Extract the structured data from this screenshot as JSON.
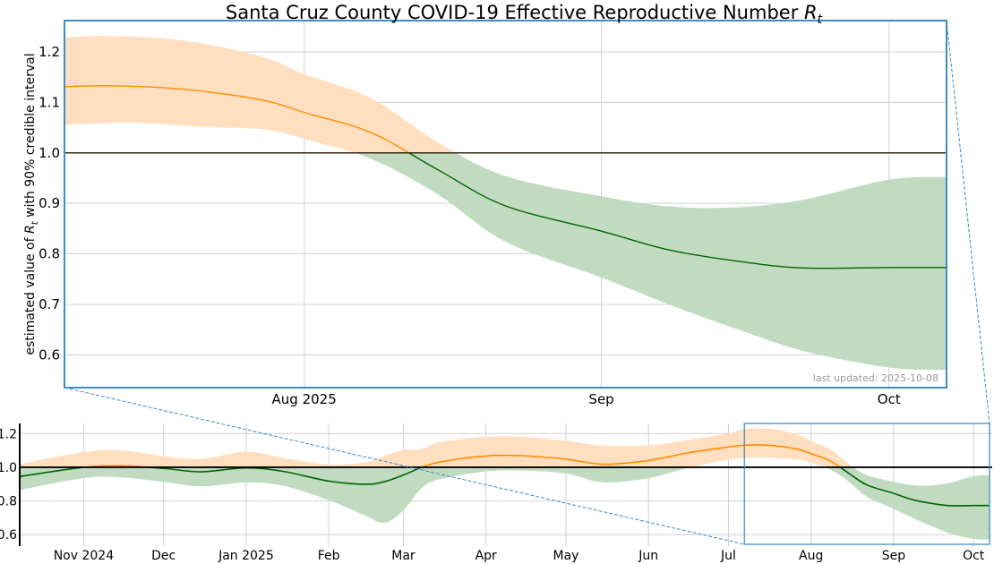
{
  "chart_data": [
    {
      "type": "line",
      "panel": "main",
      "title": {
        "text": "Santa Cruz County COVID-19 Effective Reproductive Number",
        "symbol": "R",
        "subscript": "t"
      },
      "ylabel": {
        "pre": "estimated value of",
        "symbol": "R",
        "subscript": "t",
        "post": "with 90% credible interval"
      },
      "xlim": [
        "2025-07-07",
        "2025-10-07"
      ],
      "ylim": [
        0.535,
        1.262
      ],
      "xticks": [
        {
          "date": "2025-08-01",
          "label": "Aug 2025"
        },
        {
          "date": "2025-09-01",
          "label": "Sep"
        },
        {
          "date": "2025-10-01",
          "label": "Oct"
        }
      ],
      "yticks": [
        {
          "value": 0.6,
          "label": "0.6"
        },
        {
          "value": 0.7,
          "label": "0.7"
        },
        {
          "value": 0.8,
          "label": "0.8"
        },
        {
          "value": 0.9,
          "label": "0.9"
        },
        {
          "value": 1.0,
          "label": "1.0"
        },
        {
          "value": 1.1,
          "label": "1.1"
        },
        {
          "value": 1.2,
          "label": "1.2"
        }
      ],
      "grid": true,
      "reference_line": 1.0,
      "annotation": "last updated: 2025-10-08"
    },
    {
      "type": "line",
      "panel": "overview",
      "xlim": [
        "2024-10-08",
        "2025-10-08"
      ],
      "ylim": [
        0.532,
        1.26
      ],
      "xticks": [
        {
          "date": "2024-11-01",
          "label": "Nov 2024"
        },
        {
          "date": "2024-12-01",
          "label": "Dec"
        },
        {
          "date": "2025-01-01",
          "label": "Jan 2025"
        },
        {
          "date": "2025-02-01",
          "label": "Feb"
        },
        {
          "date": "2025-03-01",
          "label": "Mar"
        },
        {
          "date": "2025-04-01",
          "label": "Apr"
        },
        {
          "date": "2025-05-01",
          "label": "May"
        },
        {
          "date": "2025-06-01",
          "label": "Jun"
        },
        {
          "date": "2025-07-01",
          "label": "Jul"
        },
        {
          "date": "2025-08-01",
          "label": "Aug"
        },
        {
          "date": "2025-09-01",
          "label": "Sep"
        },
        {
          "date": "2025-10-01",
          "label": "Oct"
        }
      ],
      "yticks": [
        {
          "value": 0.6,
          "label": "0.6"
        },
        {
          "value": 0.8,
          "label": "0.8"
        },
        {
          "value": 1.0,
          "label": "1.0"
        },
        {
          "value": 1.2,
          "label": "1.2"
        }
      ],
      "grid": true,
      "reference_line": 1.0,
      "zoom_range": [
        "2025-07-07",
        "2025-10-07"
      ]
    }
  ],
  "series": {
    "colors": {
      "above_line": "#ff8c00",
      "above_fill": "#ffdfbf",
      "below_line": "#006400",
      "below_fill": "#c1dbc1",
      "reference": "#000000",
      "frame": "#3d8cc4"
    },
    "points": [
      {
        "date": "2024-10-08",
        "median": 0.945,
        "lower": 0.865,
        "upper": 1.018
      },
      {
        "date": "2024-11-01",
        "median": 1.0,
        "lower": 0.936,
        "upper": 1.09
      },
      {
        "date": "2024-11-15",
        "median": 1.009,
        "lower": 0.94,
        "upper": 1.1
      },
      {
        "date": "2024-12-01",
        "median": 0.993,
        "lower": 0.913,
        "upper": 1.066
      },
      {
        "date": "2024-12-15",
        "median": 0.973,
        "lower": 0.887,
        "upper": 1.05
      },
      {
        "date": "2025-01-01",
        "median": 0.996,
        "lower": 0.91,
        "upper": 1.092
      },
      {
        "date": "2025-01-15",
        "median": 0.975,
        "lower": 0.89,
        "upper": 1.055
      },
      {
        "date": "2025-02-01",
        "median": 0.918,
        "lower": 0.805,
        "upper": 1.016
      },
      {
        "date": "2025-02-15",
        "median": 0.899,
        "lower": 0.71,
        "upper": 1.03
      },
      {
        "date": "2025-02-22",
        "median": 0.915,
        "lower": 0.67,
        "upper": 1.07
      },
      {
        "date": "2025-03-01",
        "median": 0.954,
        "lower": 0.745,
        "upper": 1.1
      },
      {
        "date": "2025-03-08",
        "median": 1.0,
        "lower": 0.878,
        "upper": 1.11
      },
      {
        "date": "2025-03-15",
        "median": 1.032,
        "lower": 0.93,
        "upper": 1.15
      },
      {
        "date": "2025-04-01",
        "median": 1.067,
        "lower": 0.975,
        "upper": 1.18
      },
      {
        "date": "2025-04-15",
        "median": 1.068,
        "lower": 0.98,
        "upper": 1.18
      },
      {
        "date": "2025-05-01",
        "median": 1.048,
        "lower": 0.963,
        "upper": 1.156
      },
      {
        "date": "2025-05-15",
        "median": 1.018,
        "lower": 0.91,
        "upper": 1.128
      },
      {
        "date": "2025-06-01",
        "median": 1.04,
        "lower": 0.935,
        "upper": 1.13
      },
      {
        "date": "2025-06-15",
        "median": 1.083,
        "lower": 0.993,
        "upper": 1.16
      },
      {
        "date": "2025-07-01",
        "median": 1.12,
        "lower": 1.046,
        "upper": 1.2
      },
      {
        "date": "2025-07-07",
        "median": 1.131,
        "lower": 1.055,
        "upper": 1.228
      },
      {
        "date": "2025-07-14",
        "median": 1.132,
        "lower": 1.06,
        "upper": 1.23
      },
      {
        "date": "2025-07-21",
        "median": 1.123,
        "lower": 1.052,
        "upper": 1.218
      },
      {
        "date": "2025-07-28",
        "median": 1.103,
        "lower": 1.046,
        "upper": 1.188
      },
      {
        "date": "2025-08-01",
        "median": 1.08,
        "lower": 1.028,
        "upper": 1.156
      },
      {
        "date": "2025-08-08",
        "median": 1.04,
        "lower": 0.988,
        "upper": 1.108
      },
      {
        "date": "2025-08-15",
        "median": 0.966,
        "lower": 0.917,
        "upper": 1.02
      },
      {
        "date": "2025-08-22",
        "median": 0.895,
        "lower": 0.824,
        "upper": 0.954
      },
      {
        "date": "2025-09-01",
        "median": 0.845,
        "lower": 0.753,
        "upper": 0.914
      },
      {
        "date": "2025-09-08",
        "median": 0.808,
        "lower": 0.7,
        "upper": 0.894
      },
      {
        "date": "2025-09-15",
        "median": 0.786,
        "lower": 0.652,
        "upper": 0.892
      },
      {
        "date": "2025-09-22",
        "median": 0.772,
        "lower": 0.608,
        "upper": 0.907
      },
      {
        "date": "2025-10-01",
        "median": 0.773,
        "lower": 0.575,
        "upper": 0.947
      },
      {
        "date": "2025-10-07",
        "median": 0.773,
        "lower": 0.57,
        "upper": 0.952
      }
    ]
  }
}
